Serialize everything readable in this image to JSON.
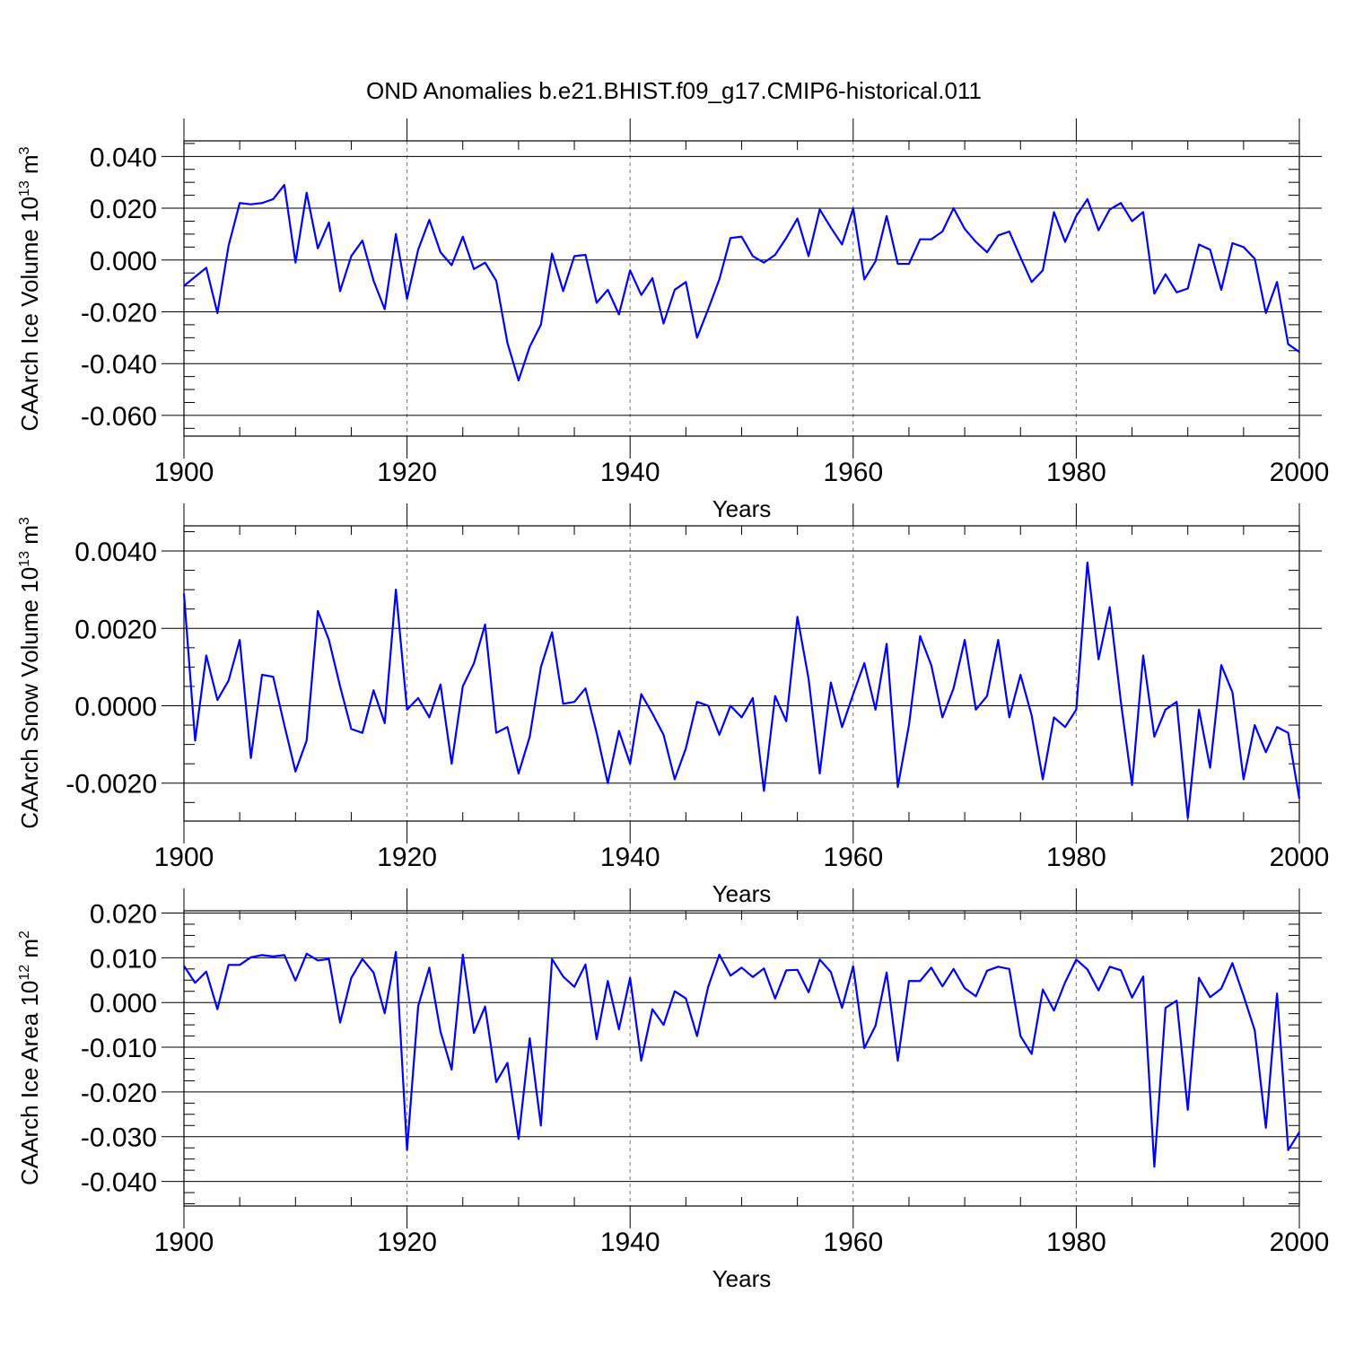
{
  "title": "OND Anomalies b.e21.BHIST.f09_g17.CMIP6-historical.011",
  "colors": {
    "line": "#0000ff",
    "axis": "#000000",
    "grid": "#777777"
  },
  "chart_data": [
    {
      "type": "line",
      "series_name": "CAArch Ice Volume",
      "ylabel_main": "CAArch Ice Volume 10",
      "ylabel_exp": "13",
      "ylabel_unit": "m",
      "ylabel_unit_exp": "3",
      "xlabel": "Years",
      "xlim": [
        1900,
        2000
      ],
      "ylim": [
        -0.068,
        0.046
      ],
      "x_ticks": [
        1900,
        1920,
        1940,
        1960,
        1980,
        2000
      ],
      "x_tick_labels": [
        "1900",
        "1920",
        "1940",
        "1960",
        "1980",
        "2000"
      ],
      "y_ticks": [
        0.04,
        0.02,
        0.0,
        -0.02,
        -0.04,
        -0.06
      ],
      "y_tick_labels": [
        "0.040",
        "0.020",
        "0.000",
        "-0.020",
        "-0.040",
        "-0.060"
      ],
      "y_minor_step": 0.005,
      "x_minor_step": 5,
      "grid_x": [
        1920,
        1940,
        1960,
        1980
      ],
      "x_start": 1900,
      "values": [
        -0.01,
        -0.0065,
        -0.003,
        -0.0205,
        0.0055,
        0.022,
        0.0215,
        0.022,
        0.0235,
        0.029,
        -0.001,
        0.026,
        0.0045,
        0.0145,
        -0.012,
        0.0015,
        0.0075,
        -0.008,
        -0.019,
        0.01,
        -0.015,
        0.004,
        0.0155,
        0.003,
        -0.002,
        0.009,
        -0.0035,
        -0.001,
        -0.008,
        -0.032,
        -0.0465,
        -0.0335,
        -0.025,
        0.0025,
        -0.012,
        0.0015,
        0.002,
        -0.0165,
        -0.0115,
        -0.021,
        -0.004,
        -0.0135,
        -0.007,
        -0.0245,
        -0.0115,
        -0.0085,
        -0.03,
        -0.019,
        -0.0075,
        0.0085,
        0.009,
        0.0015,
        -0.001,
        0.002,
        0.0085,
        0.016,
        0.0015,
        0.0195,
        0.0125,
        0.006,
        0.02,
        -0.0075,
        -0.0005,
        0.017,
        -0.0015,
        -0.0015,
        0.008,
        0.008,
        0.011,
        0.02,
        0.012,
        0.007,
        0.003,
        0.0095,
        0.011,
        0.001,
        -0.0085,
        -0.004,
        0.0185,
        0.007,
        0.017,
        0.0235,
        0.0115,
        0.0195,
        0.022,
        0.015,
        0.0185,
        -0.013,
        -0.0055,
        -0.0125,
        -0.011,
        0.006,
        0.004,
        -0.0115,
        0.0065,
        0.005,
        0.0005,
        -0.0205,
        -0.0085,
        -0.0325,
        -0.0355
      ]
    },
    {
      "type": "line",
      "series_name": "CAArch Snow Volume",
      "ylabel_main": "CAArch Snow Volume 10",
      "ylabel_exp": "13",
      "ylabel_unit": "m",
      "ylabel_unit_exp": "3",
      "xlabel": "Years",
      "xlim": [
        1900,
        2000
      ],
      "ylim": [
        -0.00298,
        0.00465
      ],
      "x_ticks": [
        1900,
        1920,
        1940,
        1960,
        1980,
        2000
      ],
      "x_tick_labels": [
        "1900",
        "1920",
        "1940",
        "1960",
        "1980",
        "2000"
      ],
      "y_ticks": [
        0.004,
        0.002,
        0.0,
        -0.002
      ],
      "y_tick_labels": [
        "0.0040",
        "0.0020",
        "0.0000",
        "-0.0020"
      ],
      "y_minor_step": 0.0005,
      "x_minor_step": 5,
      "grid_x": [
        1920,
        1940,
        1960,
        1980
      ],
      "x_start": 1900,
      "values": [
        0.0029,
        -0.0009,
        0.0013,
        0.00015,
        0.00065,
        0.0017,
        -0.00135,
        0.0008,
        0.00075,
        -0.0005,
        -0.0017,
        -0.0009,
        0.00245,
        0.0017,
        0.0005,
        -0.0006,
        -0.0007,
        0.0004,
        -0.00045,
        0.003,
        -0.0001,
        0.0002,
        -0.0003,
        0.00055,
        -0.0015,
        0.0005,
        0.0011,
        0.0021,
        -0.0007,
        -0.00055,
        -0.00175,
        -0.0008,
        0.001,
        0.0019,
        5e-05,
        0.0001,
        0.00045,
        -0.0007,
        -0.002,
        -0.00065,
        -0.0015,
        0.0003,
        -0.0002,
        -0.00075,
        -0.0019,
        -0.0011,
        0.0001,
        0.0,
        -0.00075,
        0.0,
        -0.0003,
        0.0002,
        -0.0022,
        0.00025,
        -0.0004,
        0.0023,
        0.0007,
        -0.00175,
        0.0006,
        -0.00055,
        0.0003,
        0.0011,
        -0.0001,
        0.0016,
        -0.0021,
        -0.0005,
        0.0018,
        0.00105,
        -0.0003,
        0.00045,
        0.0017,
        -0.0001,
        0.00025,
        0.0017,
        -0.0003,
        0.0008,
        -0.00025,
        -0.0019,
        -0.0003,
        -0.00055,
        -0.0001,
        0.0037,
        0.0012,
        0.00255,
        0.0001,
        -0.00205,
        0.0013,
        -0.0008,
        -0.0001,
        0.0001,
        -0.0029,
        -0.0001,
        -0.0016,
        0.00105,
        0.00035,
        -0.0019,
        -0.0005,
        -0.0012,
        -0.00055,
        -0.0007,
        -0.0024
      ]
    },
    {
      "type": "line",
      "series_name": "CAArch Ice Area",
      "ylabel_main": "CAArch Ice Area 10",
      "ylabel_exp": "12",
      "ylabel_unit": "m",
      "ylabel_unit_exp": "2",
      "xlabel": "Years",
      "xlim": [
        1900,
        2000
      ],
      "ylim": [
        -0.0455,
        0.0205
      ],
      "x_ticks": [
        1900,
        1920,
        1940,
        1960,
        1980,
        2000
      ],
      "x_tick_labels": [
        "1900",
        "1920",
        "1940",
        "1960",
        "1980",
        "2000"
      ],
      "y_ticks": [
        0.02,
        0.01,
        0.0,
        -0.01,
        -0.02,
        -0.03,
        -0.04
      ],
      "y_tick_labels": [
        "0.020",
        "0.010",
        "0.000",
        "-0.010",
        "-0.020",
        "-0.030",
        "-0.040"
      ],
      "y_minor_step": 0.0025,
      "x_minor_step": 5,
      "grid_x": [
        1920,
        1940,
        1960,
        1980
      ],
      "x_start": 1900,
      "values": [
        0.0082,
        0.0044,
        0.0069,
        -0.0015,
        0.0084,
        0.0084,
        0.0101,
        0.0106,
        0.0103,
        0.0106,
        0.0049,
        0.0109,
        0.0094,
        0.0097,
        -0.0045,
        0.0055,
        0.0097,
        0.0067,
        -0.0024,
        0.0113,
        -0.033,
        -0.0008,
        0.0078,
        -0.0065,
        -0.015,
        0.0107,
        -0.0068,
        -0.0009,
        -0.0178,
        -0.0135,
        -0.0305,
        -0.008,
        -0.0275,
        0.0097,
        0.0058,
        0.0035,
        0.0085,
        -0.0082,
        0.0048,
        -0.006,
        0.0055,
        -0.013,
        -0.0015,
        -0.005,
        0.0025,
        0.0009,
        -0.0075,
        0.0035,
        0.0107,
        0.006,
        0.0078,
        0.0057,
        0.0076,
        0.0009,
        0.0072,
        0.0073,
        0.0023,
        0.0096,
        0.0068,
        -0.0012,
        0.0081,
        -0.0102,
        -0.0052,
        0.0067,
        -0.013,
        0.0048,
        0.0048,
        0.0078,
        0.0036,
        0.0075,
        0.0032,
        0.0014,
        0.0071,
        0.008,
        0.0075,
        -0.0075,
        -0.0115,
        0.0029,
        -0.0018,
        0.0045,
        0.0096,
        0.0074,
        0.0027,
        0.008,
        0.0072,
        0.0011,
        0.0058,
        -0.0367,
        -0.0012,
        0.0004,
        -0.024,
        0.0055,
        0.0012,
        0.0031,
        0.0088,
        0.0015,
        -0.0062,
        -0.028,
        0.002,
        -0.033,
        -0.029
      ]
    }
  ]
}
